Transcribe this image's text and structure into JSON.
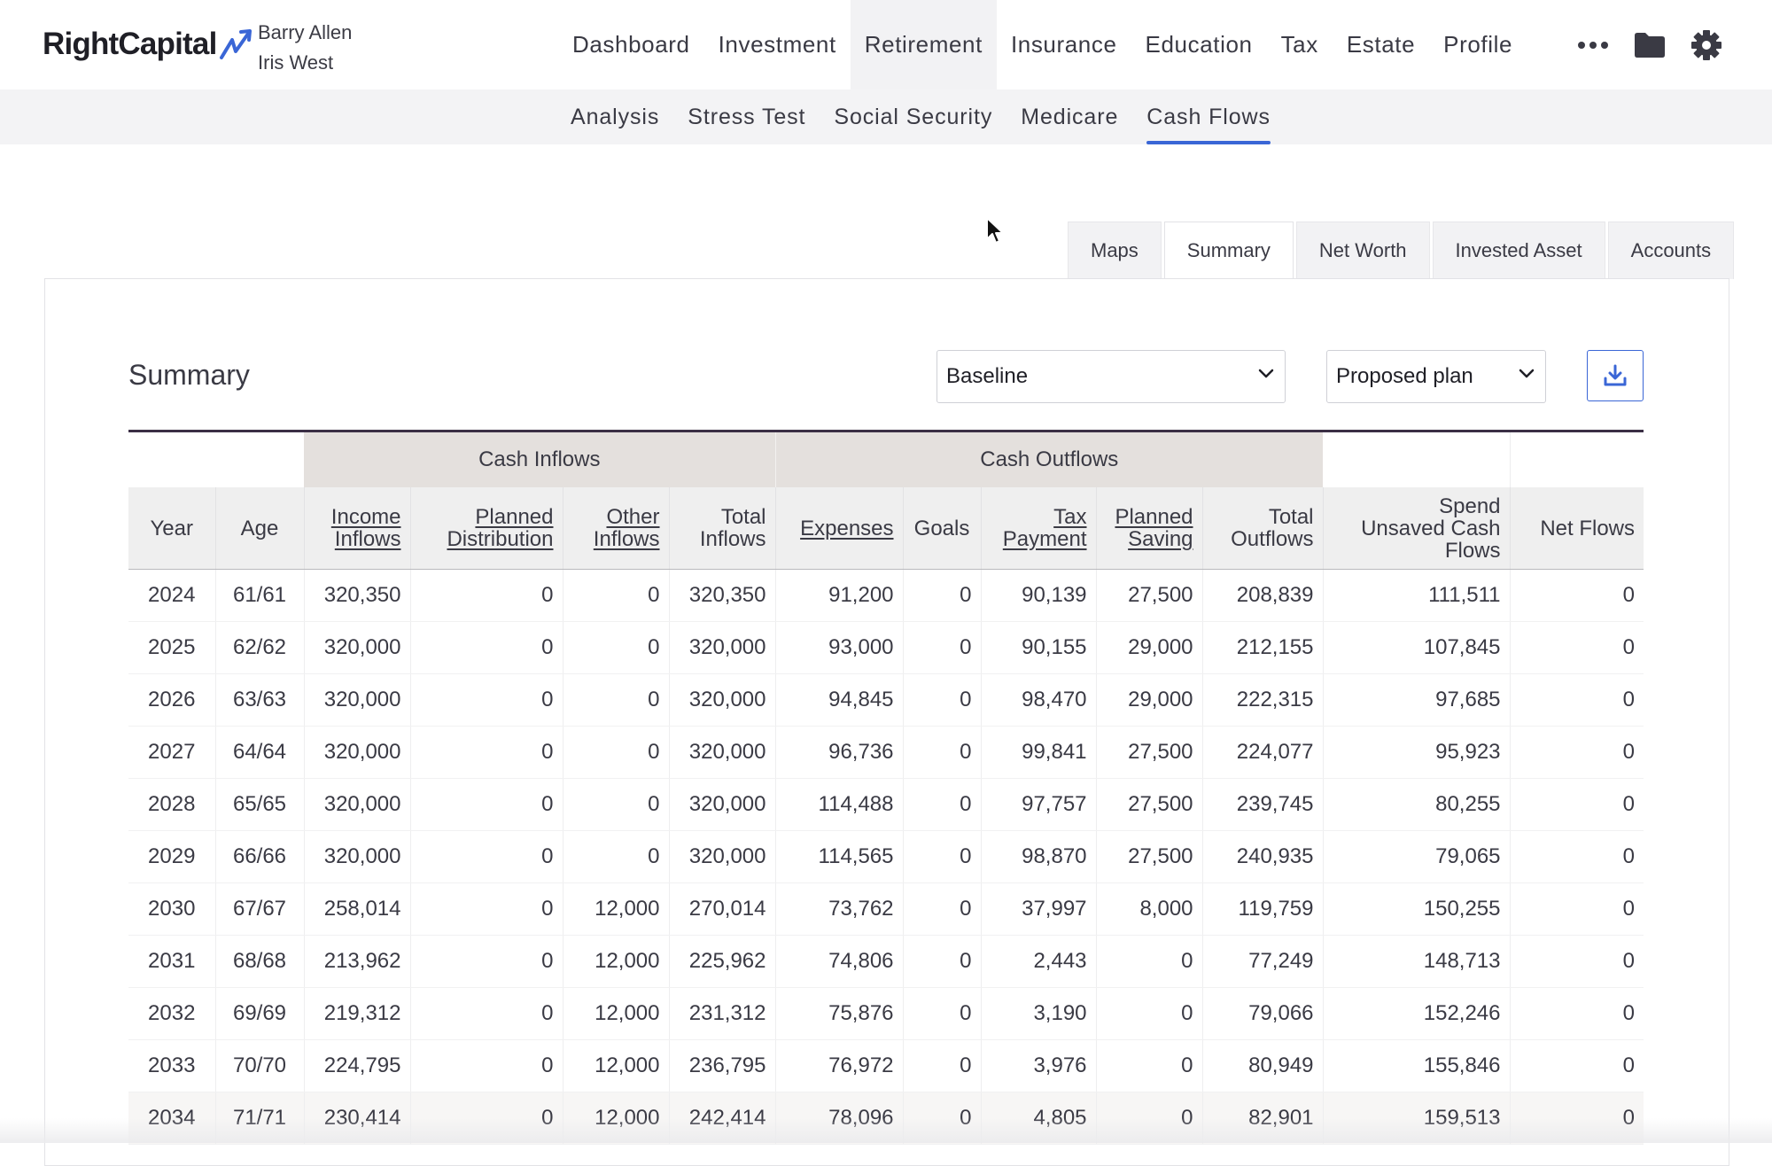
{
  "brand": {
    "name": "RightCapital"
  },
  "clients": [
    "Barry Allen",
    "Iris West"
  ],
  "main_nav": [
    {
      "label": "Dashboard",
      "active": false
    },
    {
      "label": "Investment",
      "active": false
    },
    {
      "label": "Retirement",
      "active": true
    },
    {
      "label": "Insurance",
      "active": false
    },
    {
      "label": "Education",
      "active": false
    },
    {
      "label": "Tax",
      "active": false
    },
    {
      "label": "Estate",
      "active": false
    },
    {
      "label": "Profile",
      "active": false
    }
  ],
  "nav_icons": [
    "more-icon",
    "folder-icon",
    "gear-icon"
  ],
  "sub_nav": [
    {
      "label": "Analysis",
      "active": false
    },
    {
      "label": "Stress Test",
      "active": false
    },
    {
      "label": "Social Security",
      "active": false
    },
    {
      "label": "Medicare",
      "active": false
    },
    {
      "label": "Cash Flows",
      "active": true
    }
  ],
  "view_tabs": [
    {
      "label": "Maps",
      "active": false
    },
    {
      "label": "Summary",
      "active": true
    },
    {
      "label": "Net Worth",
      "active": false
    },
    {
      "label": "Invested Asset",
      "active": false
    },
    {
      "label": "Accounts",
      "active": false
    }
  ],
  "summary": {
    "title": "Summary",
    "scenario_select": "Baseline",
    "plan_select": "Proposed plan",
    "download_icon": "download-icon"
  },
  "table": {
    "groups": {
      "inflows": "Cash Inflows",
      "outflows": "Cash Outflows"
    },
    "columns": [
      [
        "Year"
      ],
      [
        "Age"
      ],
      [
        "Income",
        "Inflows"
      ],
      [
        "Planned",
        "Distribution"
      ],
      [
        "Other",
        "Inflows"
      ],
      [
        "Total",
        "Inflows"
      ],
      [
        "Expenses"
      ],
      [
        "Goals"
      ],
      [
        "Tax",
        "Payment"
      ],
      [
        "Planned",
        "Saving"
      ],
      [
        "Total",
        "Outflows"
      ],
      [
        "Spend",
        "Unsaved Cash",
        "Flows"
      ],
      [
        "Net Flows"
      ]
    ],
    "rows": [
      [
        "2024",
        "61/61",
        "320,350",
        "0",
        "0",
        "320,350",
        "91,200",
        "0",
        "90,139",
        "27,500",
        "208,839",
        "111,511",
        "0"
      ],
      [
        "2025",
        "62/62",
        "320,000",
        "0",
        "0",
        "320,000",
        "93,000",
        "0",
        "90,155",
        "29,000",
        "212,155",
        "107,845",
        "0"
      ],
      [
        "2026",
        "63/63",
        "320,000",
        "0",
        "0",
        "320,000",
        "94,845",
        "0",
        "98,470",
        "29,000",
        "222,315",
        "97,685",
        "0"
      ],
      [
        "2027",
        "64/64",
        "320,000",
        "0",
        "0",
        "320,000",
        "96,736",
        "0",
        "99,841",
        "27,500",
        "224,077",
        "95,923",
        "0"
      ],
      [
        "2028",
        "65/65",
        "320,000",
        "0",
        "0",
        "320,000",
        "114,488",
        "0",
        "97,757",
        "27,500",
        "239,745",
        "80,255",
        "0"
      ],
      [
        "2029",
        "66/66",
        "320,000",
        "0",
        "0",
        "320,000",
        "114,565",
        "0",
        "98,870",
        "27,500",
        "240,935",
        "79,065",
        "0"
      ],
      [
        "2030",
        "67/67",
        "258,014",
        "0",
        "12,000",
        "270,014",
        "73,762",
        "0",
        "37,997",
        "8,000",
        "119,759",
        "150,255",
        "0"
      ],
      [
        "2031",
        "68/68",
        "213,962",
        "0",
        "12,000",
        "225,962",
        "74,806",
        "0",
        "2,443",
        "0",
        "77,249",
        "148,713",
        "0"
      ],
      [
        "2032",
        "69/69",
        "219,312",
        "0",
        "12,000",
        "231,312",
        "75,876",
        "0",
        "3,190",
        "0",
        "79,066",
        "152,246",
        "0"
      ],
      [
        "2033",
        "70/70",
        "224,795",
        "0",
        "12,000",
        "236,795",
        "76,972",
        "0",
        "3,976",
        "0",
        "80,949",
        "155,846",
        "0"
      ],
      [
        "2034",
        "71/71",
        "230,414",
        "0",
        "12,000",
        "242,414",
        "78,096",
        "0",
        "4,805",
        "0",
        "82,901",
        "159,513",
        "0"
      ]
    ]
  },
  "colors": {
    "accent": "#3a66d6",
    "group_header": "#e4e0dd",
    "text": "#3a3a44"
  }
}
